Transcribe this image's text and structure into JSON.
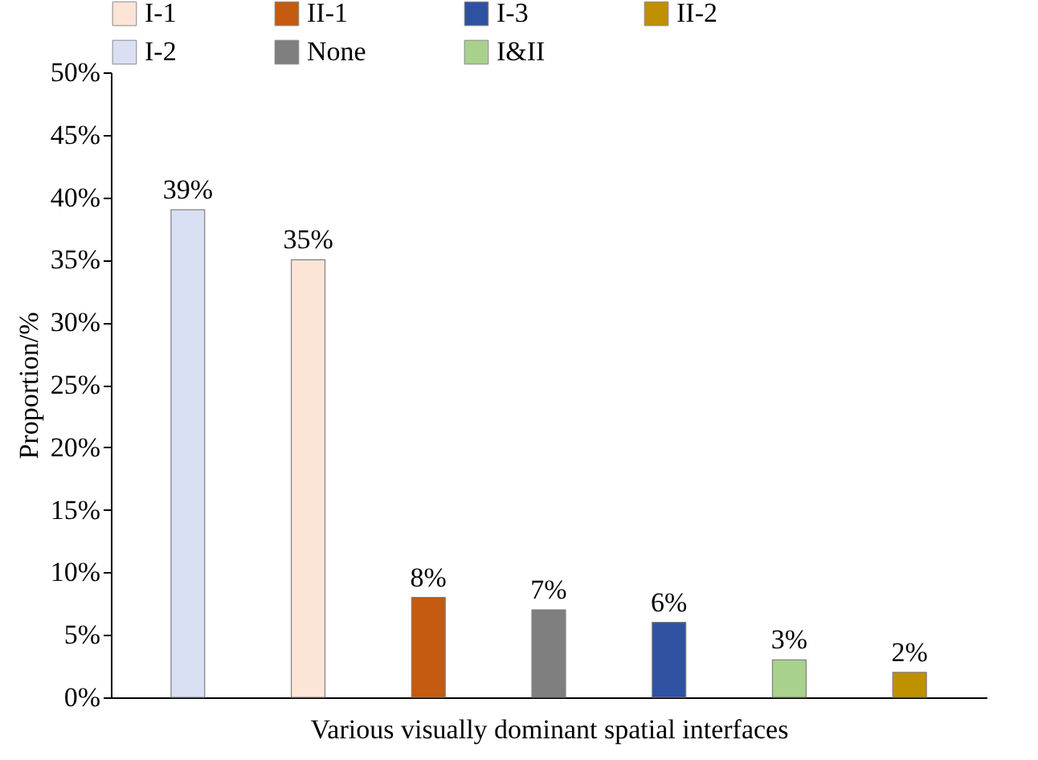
{
  "chart_data": {
    "type": "bar",
    "xlabel": "Various visually dominant spatial interfaces",
    "ylabel": "Proportion/%",
    "categories": [
      null,
      null,
      null,
      null,
      null,
      null,
      null
    ],
    "series": [
      {
        "name": "I-1",
        "color": "#fce4d6",
        "values": [
          null,
          35,
          null,
          null,
          null,
          null,
          null
        ],
        "value_labels": [
          null,
          "35%",
          null,
          null,
          null,
          null,
          null
        ]
      },
      {
        "name": "II-1",
        "color": "#c55a11",
        "values": [
          null,
          null,
          8,
          null,
          null,
          null,
          null
        ],
        "value_labels": [
          null,
          null,
          "8%",
          null,
          null,
          null,
          null
        ]
      },
      {
        "name": "I-3",
        "color": "#2f52a0",
        "values": [
          null,
          null,
          null,
          null,
          6,
          null,
          null
        ],
        "value_labels": [
          null,
          null,
          null,
          null,
          "6%",
          null,
          null
        ]
      },
      {
        "name": "II-2",
        "color": "#bf9000",
        "values": [
          null,
          null,
          null,
          null,
          null,
          null,
          2
        ],
        "value_labels": [
          null,
          null,
          null,
          null,
          null,
          null,
          "2%"
        ]
      },
      {
        "name": "I-2",
        "color": "#dae0f3",
        "values": [
          39,
          null,
          null,
          null,
          null,
          null,
          null
        ],
        "value_labels": [
          "39%",
          null,
          null,
          null,
          null,
          null,
          null
        ]
      },
      {
        "name": "None",
        "color": "#7f7f7f",
        "values": [
          null,
          null,
          null,
          7,
          null,
          null,
          null
        ],
        "value_labels": [
          null,
          null,
          null,
          "7%",
          null,
          null,
          null
        ]
      },
      {
        "name": "I&II",
        "color": "#a9d18e",
        "values": [
          null,
          null,
          null,
          null,
          null,
          3,
          null
        ],
        "value_labels": [
          null,
          null,
          null,
          null,
          null,
          "3%",
          null
        ]
      }
    ],
    "ylim": [
      0,
      50
    ],
    "yticks": [
      {
        "value": 0,
        "label": "0%"
      },
      {
        "value": 5,
        "label": "5%"
      },
      {
        "value": 10,
        "label": "10%"
      },
      {
        "value": 15,
        "label": "15%"
      },
      {
        "value": 20,
        "label": "20%"
      },
      {
        "value": 25,
        "label": "25%"
      },
      {
        "value": 30,
        "label": "30%"
      },
      {
        "value": 35,
        "label": "35%"
      },
      {
        "value": 40,
        "label": "40%"
      },
      {
        "value": 45,
        "label": "45%"
      },
      {
        "value": 50,
        "label": "50%"
      }
    ],
    "legend": "top",
    "grid": false,
    "tick_labels": "y"
  }
}
